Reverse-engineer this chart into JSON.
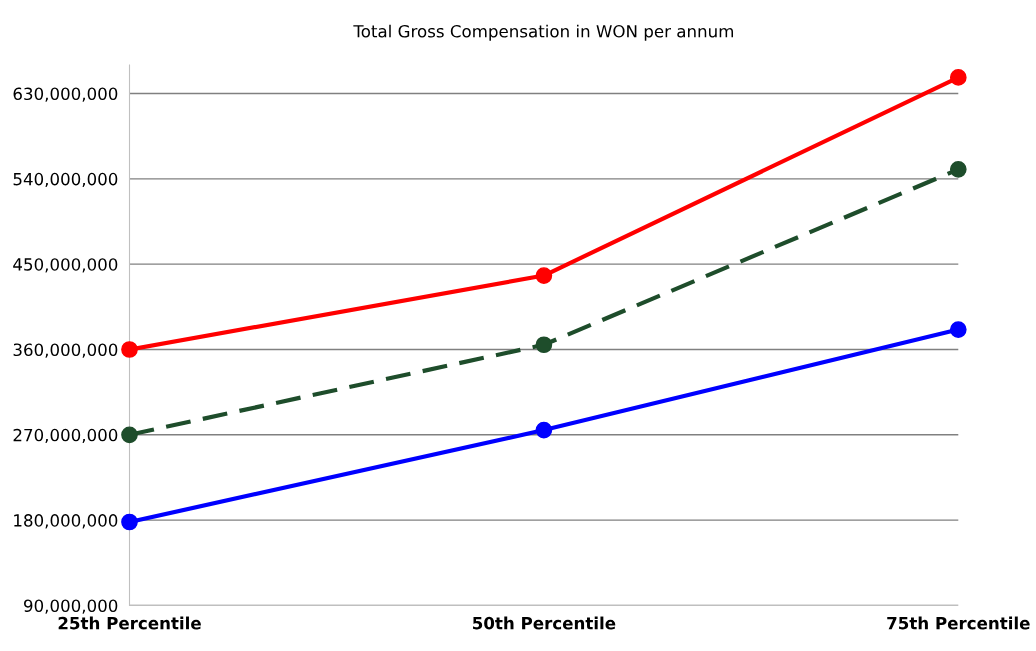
{
  "chart_data": {
    "type": "line",
    "title": "Total Gross Compensation in WON per annum",
    "categories": [
      "25th Percentile",
      "50th Percentile",
      "75th Percentile"
    ],
    "series": [
      {
        "color": "#ff0000",
        "values": [
          360000000,
          438000000,
          647000000
        ],
        "line_style": "solid"
      },
      {
        "color": "#1e4d2b",
        "values": [
          270000000,
          365000000,
          550000000
        ],
        "line_style": "dashed"
      },
      {
        "color": "#0000ff",
        "values": [
          178000000,
          275000000,
          381000000
        ],
        "line_style": "solid"
      }
    ],
    "ylim": [
      90000000,
      660000000
    ],
    "yticks": [
      {
        "value": 90000000,
        "label": "90,000,000"
      },
      {
        "value": 180000000,
        "label": "180,000,000"
      },
      {
        "value": 270000000,
        "label": "270,000,000"
      },
      {
        "value": 360000000,
        "label": "360,000,000"
      },
      {
        "value": 450000000,
        "label": "450,000,000"
      },
      {
        "value": 540000000,
        "label": "540,000,000"
      },
      {
        "value": 630000000,
        "label": "630,000,000"
      }
    ],
    "grid": "y",
    "marker": "circle"
  }
}
